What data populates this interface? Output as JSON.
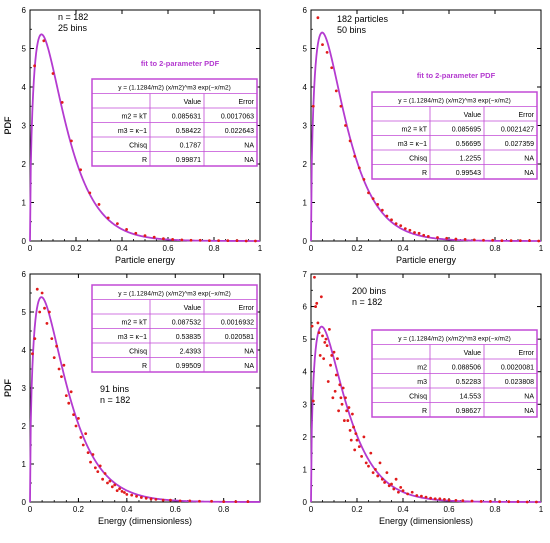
{
  "figure": {
    "panels": [
      {
        "ylabel": "PDF",
        "xlabel": "Particle energy",
        "note_lines": [
          "n = 182",
          "25 bins"
        ],
        "box_title": "fit to 2-parameter PDF",
        "table": {
          "equation": "y = (1.1284/m2) (x/m2)^m3 exp(−x/m2)",
          "header": [
            "",
            "Value",
            "Error"
          ],
          "rows": [
            [
              "m2 = kT",
              "0.085631",
              "0.0017063"
            ],
            [
              "m3 = κ−1",
              "0.58422",
              "0.022643"
            ],
            [
              "Chisq",
              "0.1787",
              "NA"
            ],
            [
              "R",
              "0.99871",
              "NA"
            ]
          ]
        }
      },
      {
        "ylabel": "PDF",
        "xlabel": "Particle energy",
        "note_lines": [
          "182 particles",
          "50 bins"
        ],
        "box_title": "fit to 2-parameter PDF",
        "table": {
          "equation": "y = (1.1284/m2) (x/m2)^m3 exp(−x/m2)",
          "header": [
            "",
            "Value",
            "Error"
          ],
          "rows": [
            [
              "m2 = kT",
              "0.085695",
              "0.0021427"
            ],
            [
              "m3 = κ−1",
              "0.56695",
              "0.027359"
            ],
            [
              "Chisq",
              "1.2255",
              "NA"
            ],
            [
              "R",
              "0.99543",
              "NA"
            ]
          ]
        }
      },
      {
        "ylabel": "PDF",
        "xlabel": "Energy (dimensionless)",
        "note_lines": [
          "91 bins",
          "n = 182"
        ],
        "box_title": "",
        "table": {
          "equation": "y = (1.1284/m2) (x/m2)^m3 exp(−x/m2)",
          "header": [
            "",
            "Value",
            "Error"
          ],
          "rows": [
            [
              "m2 = kT",
              "0.087532",
              "0.0016932"
            ],
            [
              "m3 = κ−1",
              "0.53835",
              "0.020581"
            ],
            [
              "Chisq",
              "2.4393",
              "NA"
            ],
            [
              "R",
              "0.99509",
              "NA"
            ]
          ]
        }
      },
      {
        "ylabel": "PDF",
        "xlabel": "Energy (dimensionless)",
        "note_lines": [
          "200 bins",
          "n = 182"
        ],
        "box_title": "",
        "table": {
          "equation": "y = (1.1284/m2) (x/m2)^m3 exp(−x/m2)",
          "header": [
            "",
            "Value",
            "Error"
          ],
          "rows": [
            [
              "m2",
              "0.088506",
              "0.0020081"
            ],
            [
              "m3",
              "0.52283",
              "0.023808"
            ],
            [
              "Chisq",
              "14.553",
              "NA"
            ],
            [
              "R",
              "0.98627",
              "NA"
            ]
          ]
        }
      }
    ]
  },
  "colors": {
    "fit_line": "#b43bd0",
    "points": "#e01b1b",
    "table_border": "#c24ad6",
    "box_title": "#b43bd0",
    "axis": "#000000"
  },
  "chart_data": [
    {
      "type": "scatter",
      "xlim": [
        0,
        1
      ],
      "ylim": [
        0,
        6
      ],
      "xticks": [
        "0",
        "0.2",
        "0.4",
        "0.6",
        "0.8",
        "1"
      ],
      "yticks": [
        "0",
        "1",
        "2",
        "3",
        "4",
        "5",
        "6"
      ],
      "series": [
        {
          "kind": "points",
          "x": [
            0.02,
            0.06,
            0.1,
            0.14,
            0.18,
            0.22,
            0.26,
            0.3,
            0.34,
            0.38,
            0.42,
            0.46,
            0.5,
            0.54,
            0.58,
            0.62,
            0.66,
            0.7,
            0.74,
            0.78,
            0.82,
            0.86,
            0.9,
            0.94,
            0.98
          ],
          "y": [
            4.55,
            5.2,
            4.35,
            3.6,
            2.6,
            1.85,
            1.25,
            0.95,
            0.6,
            0.45,
            0.3,
            0.2,
            0.14,
            0.1,
            0.06,
            0.04,
            0.03,
            0.02,
            0.02,
            0.01,
            0.01,
            0.01,
            0.01,
            0.0,
            0.0
          ]
        },
        {
          "kind": "fit",
          "m2": 0.085631,
          "m3": 0.58422,
          "domain": [
            0,
            1
          ]
        }
      ]
    },
    {
      "type": "scatter",
      "xlim": [
        0,
        1
      ],
      "ylim": [
        0,
        6
      ],
      "xticks": [
        "0",
        "0.2",
        "0.4",
        "0.6",
        "0.8",
        "1"
      ],
      "yticks": [
        "0",
        "1",
        "2",
        "3",
        "4",
        "5",
        "6"
      ],
      "series": [
        {
          "kind": "points",
          "x": [
            0.01,
            0.03,
            0.05,
            0.07,
            0.09,
            0.11,
            0.13,
            0.15,
            0.17,
            0.19,
            0.21,
            0.23,
            0.25,
            0.27,
            0.29,
            0.31,
            0.33,
            0.35,
            0.37,
            0.39,
            0.41,
            0.43,
            0.45,
            0.47,
            0.49,
            0.51,
            0.55,
            0.59,
            0.63,
            0.67,
            0.71,
            0.75,
            0.79,
            0.83,
            0.87,
            0.91,
            0.95,
            0.99
          ],
          "y": [
            3.5,
            5.8,
            5.1,
            4.9,
            4.5,
            3.9,
            3.5,
            3.0,
            2.6,
            2.2,
            1.9,
            1.6,
            1.25,
            1.1,
            0.95,
            0.8,
            0.65,
            0.55,
            0.45,
            0.4,
            0.32,
            0.28,
            0.22,
            0.2,
            0.15,
            0.12,
            0.09,
            0.07,
            0.05,
            0.04,
            0.03,
            0.02,
            0.02,
            0.01,
            0.01,
            0.01,
            0.01,
            0.0
          ]
        },
        {
          "kind": "fit",
          "m2": 0.085695,
          "m3": 0.56695,
          "domain": [
            0,
            1
          ]
        }
      ]
    },
    {
      "type": "scatter",
      "xlim": [
        0,
        0.95
      ],
      "ylim": [
        0,
        6
      ],
      "xticks": [
        "0",
        "0.2",
        "0.4",
        "0.6",
        "0.8"
      ],
      "yticks": [
        "0",
        "1",
        "2",
        "3",
        "4",
        "5",
        "6"
      ],
      "series": [
        {
          "kind": "points",
          "x": [
            0.01,
            0.02,
            0.03,
            0.04,
            0.05,
            0.06,
            0.07,
            0.08,
            0.09,
            0.1,
            0.11,
            0.12,
            0.13,
            0.14,
            0.15,
            0.16,
            0.17,
            0.18,
            0.19,
            0.2,
            0.21,
            0.22,
            0.23,
            0.24,
            0.25,
            0.26,
            0.27,
            0.28,
            0.29,
            0.3,
            0.31,
            0.32,
            0.33,
            0.34,
            0.35,
            0.36,
            0.37,
            0.38,
            0.39,
            0.4,
            0.42,
            0.44,
            0.46,
            0.48,
            0.5,
            0.52,
            0.55,
            0.58,
            0.62,
            0.66,
            0.7,
            0.75,
            0.8,
            0.85,
            0.9
          ],
          "y": [
            3.9,
            4.3,
            5.6,
            5.0,
            5.5,
            5.1,
            4.7,
            5.0,
            4.3,
            3.8,
            4.1,
            3.5,
            3.3,
            3.6,
            2.8,
            2.6,
            2.9,
            2.3,
            2.0,
            2.2,
            1.7,
            1.5,
            1.8,
            1.3,
            1.05,
            1.25,
            0.9,
            0.8,
            0.95,
            0.6,
            0.75,
            0.5,
            0.55,
            0.4,
            0.45,
            0.3,
            0.35,
            0.28,
            0.25,
            0.2,
            0.18,
            0.15,
            0.12,
            0.1,
            0.08,
            0.07,
            0.05,
            0.05,
            0.03,
            0.03,
            0.02,
            0.02,
            0.01,
            0.01,
            0.01
          ]
        },
        {
          "kind": "fit",
          "m2": 0.087532,
          "m3": 0.53835,
          "domain": [
            0,
            0.95
          ]
        }
      ]
    },
    {
      "type": "scatter",
      "xlim": [
        0,
        1
      ],
      "ylim": [
        0,
        7
      ],
      "xticks": [
        "0",
        "0.2",
        "0.4",
        "0.6",
        "0.8",
        "1"
      ],
      "yticks": [
        "0",
        "1",
        "2",
        "3",
        "4",
        "5",
        "6",
        "7"
      ],
      "series": [
        {
          "kind": "points",
          "x": [
            0.005,
            0.01,
            0.015,
            0.02,
            0.025,
            0.03,
            0.035,
            0.04,
            0.045,
            0.05,
            0.055,
            0.06,
            0.065,
            0.07,
            0.075,
            0.08,
            0.085,
            0.09,
            0.095,
            0.1,
            0.105,
            0.11,
            0.115,
            0.12,
            0.125,
            0.13,
            0.135,
            0.14,
            0.145,
            0.15,
            0.155,
            0.16,
            0.165,
            0.17,
            0.175,
            0.18,
            0.185,
            0.19,
            0.195,
            0.2,
            0.21,
            0.22,
            0.23,
            0.24,
            0.25,
            0.26,
            0.27,
            0.28,
            0.29,
            0.3,
            0.31,
            0.32,
            0.33,
            0.34,
            0.35,
            0.36,
            0.37,
            0.38,
            0.39,
            0.4,
            0.42,
            0.44,
            0.46,
            0.48,
            0.5,
            0.52,
            0.54,
            0.56,
            0.58,
            0.6,
            0.63,
            0.66,
            0.7,
            0.74,
            0.78,
            0.82,
            0.86,
            0.9,
            0.94,
            0.98
          ],
          "y": [
            5.4,
            3.1,
            6.9,
            6.0,
            6.1,
            5.5,
            5.2,
            4.5,
            6.3,
            5.1,
            4.4,
            4.9,
            5.0,
            4.8,
            3.7,
            5.3,
            4.2,
            4.5,
            3.2,
            4.6,
            3.4,
            3.9,
            4.4,
            2.8,
            3.6,
            3.2,
            3.0,
            3.5,
            2.5,
            3.2,
            2.8,
            2.5,
            2.9,
            2.2,
            1.9,
            2.7,
            2.3,
            1.6,
            2.1,
            1.9,
            1.7,
            1.4,
            2.0,
            1.2,
            1.1,
            1.5,
            0.9,
            1.0,
            0.8,
            1.2,
            0.7,
            0.6,
            0.9,
            0.5,
            0.55,
            0.4,
            0.7,
            0.3,
            0.45,
            0.35,
            0.25,
            0.3,
            0.2,
            0.18,
            0.15,
            0.12,
            0.1,
            0.1,
            0.08,
            0.06,
            0.05,
            0.04,
            0.03,
            0.02,
            0.02,
            0.01,
            0.01,
            0.01,
            0.0,
            0.0
          ]
        },
        {
          "kind": "fit",
          "m2": 0.088506,
          "m3": 0.52283,
          "domain": [
            0,
            1
          ]
        }
      ]
    }
  ]
}
